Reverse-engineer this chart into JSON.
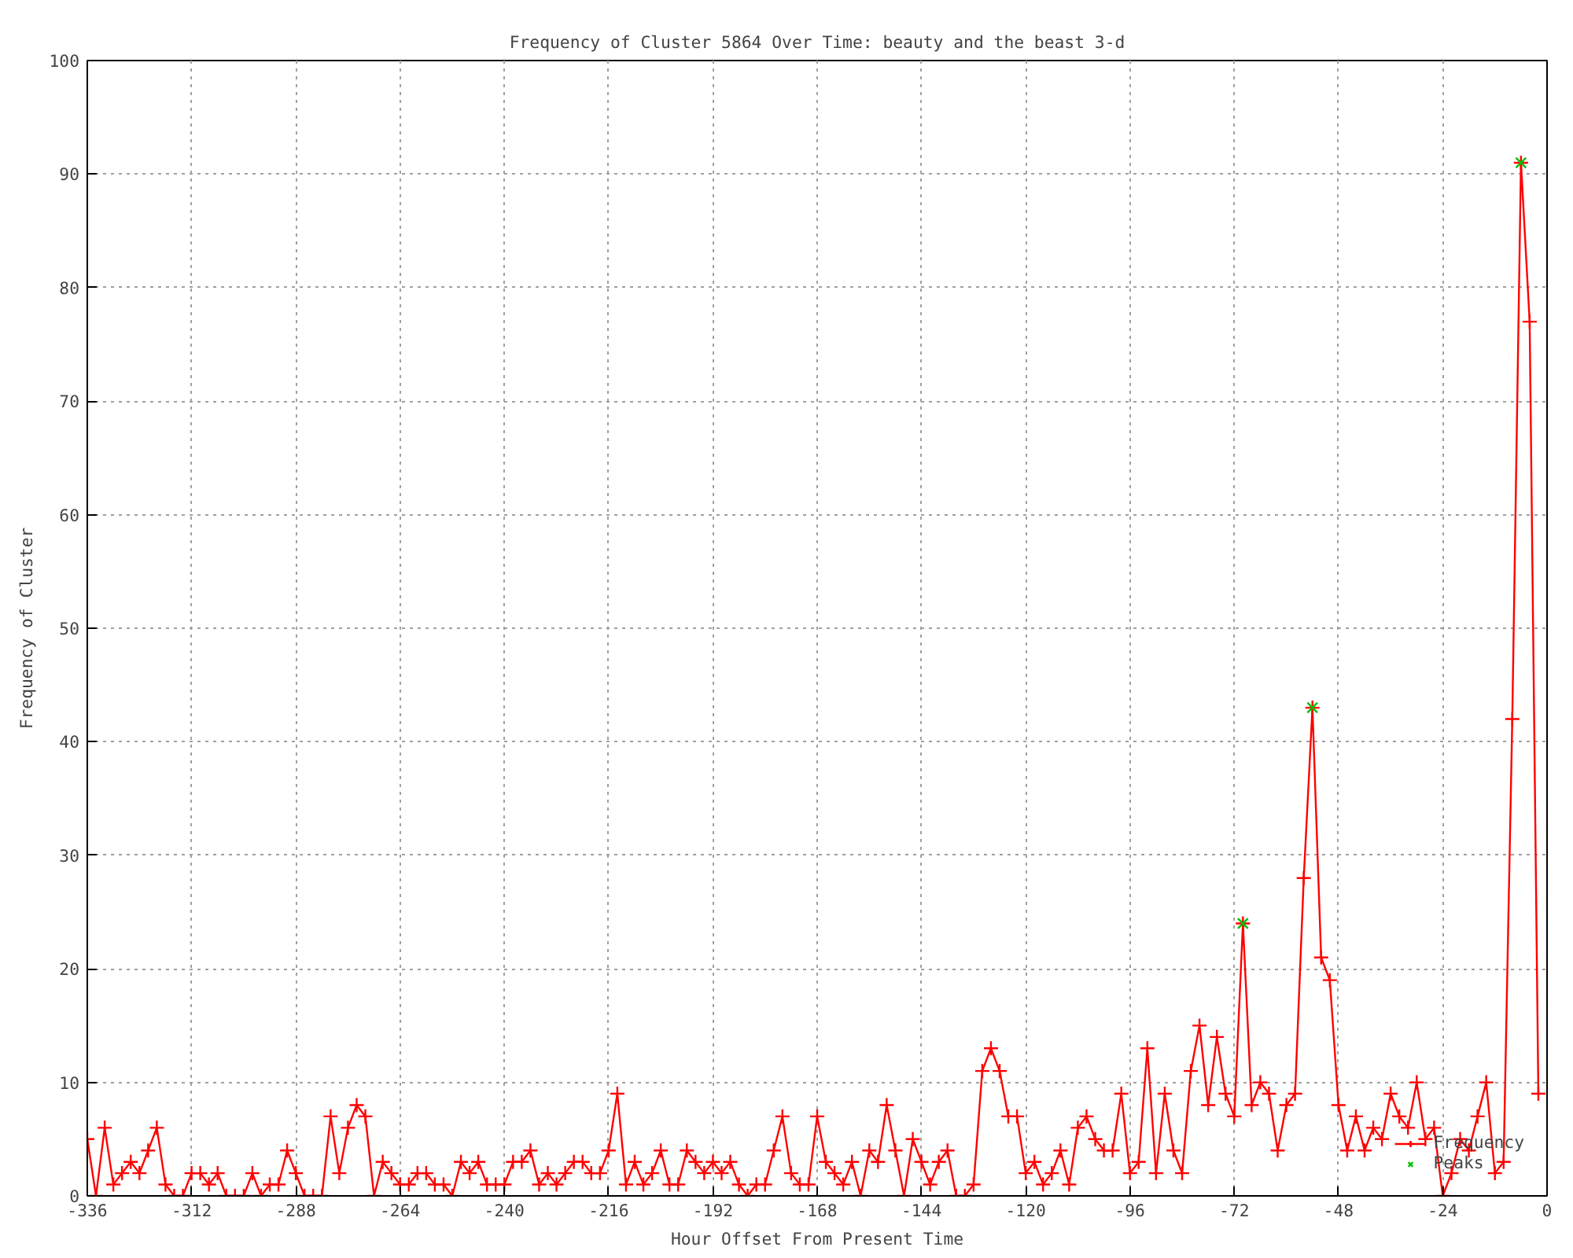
{
  "chart_data": {
    "type": "line",
    "title": "Frequency of Cluster 5864 Over Time: beauty and the beast 3-d",
    "xlabel": "Hour Offset From Present Time",
    "ylabel": "Frequency of Cluster",
    "xlim": [
      -336,
      0
    ],
    "ylim": [
      0,
      100
    ],
    "xticks": [
      -336,
      -312,
      -288,
      -264,
      -240,
      -216,
      -192,
      -168,
      -144,
      -120,
      -96,
      -72,
      -48,
      -24,
      0
    ],
    "yticks": [
      0,
      10,
      20,
      30,
      40,
      50,
      60,
      70,
      80,
      90,
      100
    ],
    "grid": true,
    "legend": "bottom right",
    "marker": "cross",
    "line_style": "solid",
    "x": [
      -336,
      -334,
      -332,
      -330,
      -328,
      -326,
      -324,
      -322,
      -320,
      -318,
      -316,
      -314,
      -312,
      -310,
      -308,
      -306,
      -304,
      -302,
      -300,
      -298,
      -296,
      -294,
      -292,
      -290,
      -288,
      -286,
      -284,
      -282,
      -280,
      -278,
      -276,
      -274,
      -272,
      -270,
      -268,
      -266,
      -264,
      -262,
      -260,
      -258,
      -256,
      -254,
      -252,
      -250,
      -248,
      -246,
      -244,
      -242,
      -240,
      -238,
      -236,
      -234,
      -232,
      -230,
      -228,
      -226,
      -224,
      -222,
      -220,
      -218,
      -216,
      -214,
      -212,
      -210,
      -208,
      -206,
      -204,
      -202,
      -200,
      -198,
      -196,
      -194,
      -192,
      -190,
      -188,
      -186,
      -184,
      -182,
      -180,
      -178,
      -176,
      -174,
      -172,
      -170,
      -168,
      -166,
      -164,
      -162,
      -160,
      -158,
      -156,
      -154,
      -152,
      -150,
      -148,
      -146,
      -144,
      -142,
      -140,
      -138,
      -136,
      -134,
      -132,
      -130,
      -128,
      -126,
      -124,
      -122,
      -120,
      -118,
      -116,
      -114,
      -112,
      -110,
      -108,
      -106,
      -104,
      -102,
      -100,
      -98,
      -96,
      -94,
      -92,
      -90,
      -88,
      -86,
      -84,
      -82,
      -80,
      -78,
      -76,
      -74,
      -72,
      -70,
      -68,
      -66,
      -64,
      -62,
      -60,
      -58,
      -56,
      -54,
      -52,
      -50,
      -48,
      -46,
      -44,
      -42,
      -40,
      -38,
      -36,
      -34,
      -32,
      -30,
      -28,
      -26,
      -24,
      -22,
      -20,
      -18,
      -16,
      -14,
      -12,
      -10,
      -8,
      -6,
      -4,
      -2
    ],
    "series": [
      {
        "name": "Frequency",
        "color": "#ff0000",
        "values": [
          5,
          0,
          6,
          1,
          2,
          3,
          2,
          4,
          6,
          1,
          0,
          0,
          2,
          2,
          1,
          2,
          0,
          0,
          0,
          2,
          0,
          1,
          1,
          4,
          2,
          0,
          0,
          0,
          7,
          2,
          6,
          8,
          7,
          0,
          3,
          2,
          1,
          1,
          2,
          2,
          1,
          1,
          0,
          3,
          2,
          3,
          1,
          1,
          1,
          3,
          3,
          4,
          1,
          2,
          1,
          2,
          3,
          3,
          2,
          2,
          4,
          9,
          1,
          3,
          1,
          2,
          4,
          1,
          1,
          4,
          3,
          2,
          3,
          2,
          3,
          1,
          0,
          1,
          1,
          4,
          7,
          2,
          1,
          1,
          7,
          3,
          2,
          1,
          3,
          0,
          4,
          3,
          8,
          4,
          0,
          5,
          3,
          1,
          3,
          4,
          0,
          0,
          1,
          11,
          13,
          11,
          7,
          7,
          2,
          3,
          1,
          2,
          4,
          1,
          6,
          7,
          5,
          4,
          4,
          9,
          2,
          3,
          13,
          2,
          9,
          4,
          2,
          11,
          15,
          8,
          14,
          9,
          7,
          24,
          8,
          10,
          9,
          4,
          8,
          9,
          28,
          43,
          21,
          19,
          8,
          4,
          7,
          4,
          6,
          5,
          9,
          7,
          6,
          10,
          5,
          6,
          0,
          2,
          5,
          4,
          7,
          10,
          2,
          3,
          42,
          91,
          77,
          9
        ]
      },
      {
        "name": "Peaks",
        "type": "scatter",
        "marker": "x",
        "color": "#00c000",
        "x": [
          -70,
          -54,
          -6
        ],
        "values": [
          24,
          43,
          91
        ]
      }
    ]
  }
}
